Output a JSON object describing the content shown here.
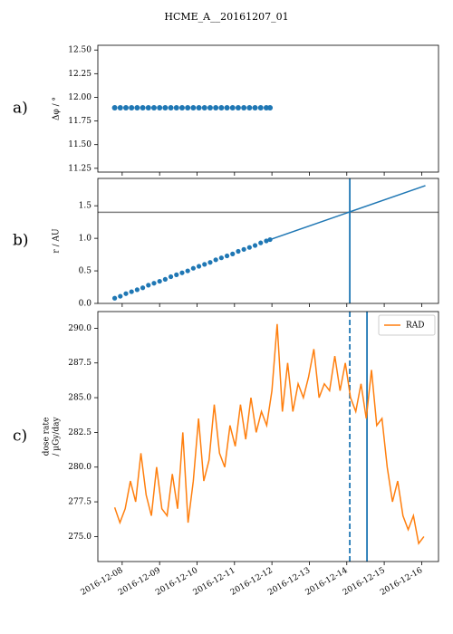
{
  "title": "HCME_A__20161207_01",
  "chart_data": [
    {
      "type": "scatter",
      "panel_label": "a)",
      "ylabel": [
        "Δφ / °"
      ],
      "xlim": [
        7.35,
        16.45
      ],
      "xticks": [
        8,
        9,
        10,
        11,
        12,
        13,
        14,
        15,
        16
      ],
      "ylim": [
        11.21,
        12.55
      ],
      "yticks": [
        {
          "value": 11.25,
          "label": "11.25"
        },
        {
          "value": 11.5,
          "label": "11.50"
        },
        {
          "value": 11.75,
          "label": "11.75"
        },
        {
          "value": 12,
          "label": "12.00"
        },
        {
          "value": 12.25,
          "label": "12.25"
        },
        {
          "value": 12.5,
          "label": "12.50"
        }
      ],
      "series": [
        {
          "mode": "markers",
          "color": "#1f77b4",
          "x": [
            7.8,
            7.95,
            8.1,
            8.25,
            8.4,
            8.55,
            8.7,
            8.85,
            9.0,
            9.15,
            9.3,
            9.45,
            9.6,
            9.75,
            9.9,
            10.05,
            10.2,
            10.35,
            10.5,
            10.65,
            10.8,
            10.95,
            11.1,
            11.25,
            11.4,
            11.55,
            11.7,
            11.85,
            11.95
          ],
          "values": [
            11.89,
            11.89,
            11.89,
            11.89,
            11.89,
            11.89,
            11.89,
            11.89,
            11.89,
            11.89,
            11.89,
            11.89,
            11.89,
            11.89,
            11.89,
            11.89,
            11.89,
            11.89,
            11.89,
            11.89,
            11.89,
            11.89,
            11.89,
            11.89,
            11.89,
            11.89,
            11.89,
            11.89,
            11.89
          ]
        }
      ]
    },
    {
      "type": "scatter",
      "panel_label": "b)",
      "ylabel": [
        "r / AU"
      ],
      "xlim": [
        7.35,
        16.45
      ],
      "xticks": [
        8,
        9,
        10,
        11,
        12,
        13,
        14,
        15,
        16
      ],
      "ylim": [
        0,
        1.92
      ],
      "yticks": [
        {
          "value": 0,
          "label": "0.0"
        },
        0.5,
        {
          "value": 1,
          "label": "1.0"
        },
        1.5
      ],
      "series": [
        {
          "mode": "markers",
          "color": "#1f77b4",
          "x": [
            7.8,
            7.95,
            8.1,
            8.25,
            8.4,
            8.55,
            8.7,
            8.85,
            9.0,
            9.15,
            9.3,
            9.45,
            9.6,
            9.75,
            9.9,
            10.05,
            10.2,
            10.35,
            10.5,
            10.65,
            10.8,
            10.95,
            11.1,
            11.25,
            11.4,
            11.55,
            11.7,
            11.85,
            11.95
          ],
          "values": [
            0.08,
            0.11,
            0.15,
            0.18,
            0.21,
            0.24,
            0.28,
            0.31,
            0.34,
            0.37,
            0.41,
            0.44,
            0.47,
            0.5,
            0.54,
            0.57,
            0.6,
            0.63,
            0.67,
            0.7,
            0.73,
            0.76,
            0.8,
            0.83,
            0.86,
            0.89,
            0.93,
            0.96,
            0.98
          ]
        },
        {
          "mode": "line",
          "color": "#1f77b4",
          "x": [
            11.95,
            16.1
          ],
          "values": [
            0.98,
            1.81
          ]
        }
      ],
      "hlines": [
        {
          "y": 1.4,
          "color": "#808080"
        }
      ],
      "vlines": [
        {
          "x": 14.08,
          "color": "#1f77b4",
          "linestyle": "solid"
        }
      ]
    },
    {
      "type": "line",
      "panel_label": "c)",
      "ylabel": [
        "dose rate",
        "/ µGy/day"
      ],
      "xlim": [
        7.35,
        16.45
      ],
      "xticks": [
        {
          "value": 8,
          "label": "2016-12-08"
        },
        {
          "value": 9,
          "label": "2016-12-09"
        },
        {
          "value": 10,
          "label": "2016-12-10"
        },
        {
          "value": 11,
          "label": "2016-12-11"
        },
        {
          "value": 12,
          "label": "2016-12-12"
        },
        {
          "value": 13,
          "label": "2016-12-13"
        },
        {
          "value": 14,
          "label": "2016-12-14"
        },
        {
          "value": 15,
          "label": "2016-12-15"
        },
        {
          "value": 16,
          "label": "2016-12-16"
        }
      ],
      "ylim": [
        273.2,
        291.2
      ],
      "yticks": [
        {
          "value": 275,
          "label": "275.0"
        },
        277.5,
        {
          "value": 280,
          "label": "280.0"
        },
        282.5,
        {
          "value": 285,
          "label": "285.0"
        },
        287.5,
        {
          "value": 290,
          "label": "290.0"
        }
      ],
      "legend": "upper right",
      "series": [
        {
          "name": "RAD",
          "mode": "line",
          "color": "#ff7f0e",
          "x": [
            7.8,
            7.94,
            8.08,
            8.22,
            8.36,
            8.5,
            8.64,
            8.78,
            8.92,
            9.06,
            9.2,
            9.34,
            9.48,
            9.62,
            9.76,
            9.9,
            10.04,
            10.18,
            10.32,
            10.46,
            10.6,
            10.74,
            10.88,
            11.02,
            11.16,
            11.3,
            11.44,
            11.58,
            11.72,
            11.86,
            12.0,
            12.14,
            12.28,
            12.42,
            12.56,
            12.7,
            12.84,
            12.98,
            13.12,
            13.26,
            13.4,
            13.54,
            13.68,
            13.82,
            13.96,
            14.1,
            14.24,
            14.38,
            14.52,
            14.66,
            14.8,
            14.94,
            15.08,
            15.22,
            15.36,
            15.5,
            15.64,
            15.78,
            15.92,
            16.06
          ],
          "values": [
            277.1,
            276.0,
            277.0,
            279.0,
            277.5,
            281.0,
            278.0,
            276.5,
            280.0,
            277.0,
            276.5,
            279.5,
            277.0,
            282.5,
            276.0,
            279.0,
            283.5,
            279.0,
            280.5,
            284.5,
            281.0,
            280.0,
            283.0,
            281.5,
            284.5,
            282.0,
            285.0,
            282.5,
            284.0,
            283.0,
            285.5,
            290.3,
            284.0,
            287.5,
            284.0,
            286.0,
            285.0,
            286.5,
            288.5,
            285.0,
            286.0,
            285.5,
            288.0,
            285.5,
            287.5,
            285.0,
            284.0,
            286.0,
            283.5,
            287.0,
            283.0,
            283.5,
            280.0,
            277.5,
            279.0,
            276.5,
            275.5,
            276.5,
            274.5,
            275.0
          ]
        }
      ],
      "vlines": [
        {
          "x": 14.08,
          "color": "#1f77b4",
          "linestyle": "dashed"
        },
        {
          "x": 14.54,
          "color": "#1f77b4",
          "linestyle": "solid"
        }
      ]
    }
  ]
}
